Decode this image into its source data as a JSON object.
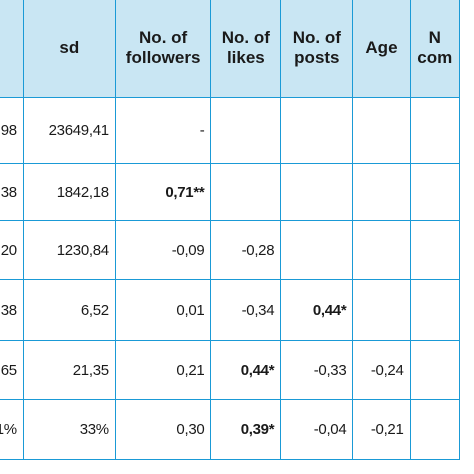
{
  "headers": [
    "",
    "sd",
    "No. of\nfollowers",
    "No. of\nlikes",
    "No. of\nposts",
    "Age",
    "N\ncom"
  ],
  "rows": [
    {
      "mean": "98",
      "sd": "23649,41",
      "followers": "-",
      "likes": "",
      "posts": "",
      "age": "",
      "comments": ""
    },
    {
      "mean": "38",
      "sd": "1842,18",
      "followers": "0,71**",
      "likes": "",
      "posts": "",
      "age": "",
      "comments": ""
    },
    {
      "mean": "20",
      "sd": "1230,84",
      "followers": "-0,09",
      "likes": "-0,28",
      "posts": "",
      "age": "",
      "comments": ""
    },
    {
      "mean": "38",
      "sd": "6,52",
      "followers": "0,01",
      "likes": "-0,34",
      "posts": "0,44*",
      "age": "",
      "comments": ""
    },
    {
      "mean": "65",
      "sd": "21,35",
      "followers": "0,21",
      "likes": "0,44*",
      "posts": "-0,33",
      "age": "-0,24",
      "comments": ""
    },
    {
      "mean": "1%",
      "sd": "33%",
      "followers": "0,30",
      "likes": "0,39*",
      "posts": "-0,04",
      "age": "-0,21",
      "comments": ""
    }
  ]
}
